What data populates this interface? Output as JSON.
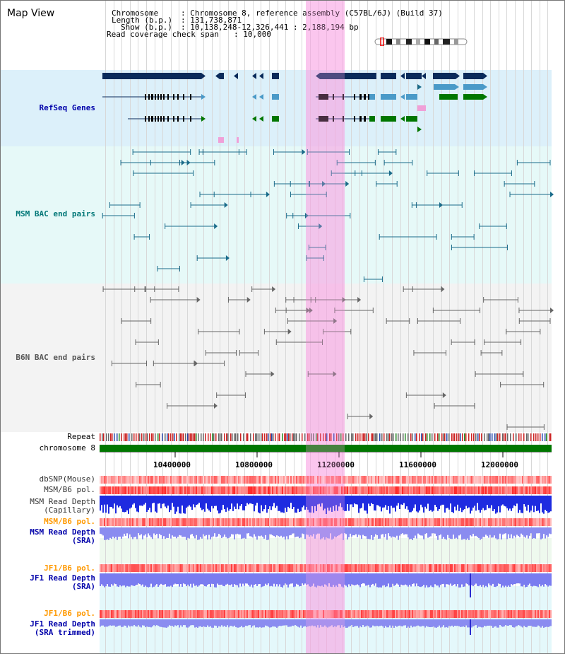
{
  "header": {
    "title": "Map View",
    "chromosome_label": "Chromosome",
    "chromosome_value": ": Chromosome 8, reference assembly (C57BL/6J) (Build 37)",
    "length_label": "Length (b.p.)",
    "length_value": ": 131,738,871",
    "show_label": "Show (b.p.)",
    "show_value": ": 10,138,248-12,326,441 : 2,188,194 bp",
    "coverage_label": "Read coverage check span",
    "coverage_value": ": 10,000"
  },
  "tracks": {
    "refseq": "RefSeq Genes",
    "msm_bac": "MSM BAC end pairs",
    "b6n_bac": "B6N BAC end pairs",
    "repeat": "Repeat",
    "chromosome": "chromosome 8",
    "dbsnp": "dbSNP(Mouse)",
    "msm_b6_pol_1": "MSM/B6 pol.",
    "msm_depth_cap_1": "MSM Read Depth",
    "msm_depth_cap_2": "(Capillary)",
    "msm_b6_pol_2": "MSM/B6 pol.",
    "msm_depth_sra_1": "MSM Read Depth",
    "msm_depth_sra_2": "(SRA)",
    "jf1_b6_pol_1": "JF1/B6 pol.",
    "jf1_depth_sra_1": "JF1 Read Depth",
    "jf1_depth_sra_2": "(SRA)",
    "jf1_b6_pol_2": "JF1/B6 pol.",
    "jf1_depth_trim_1": "JF1 Read Depth",
    "jf1_depth_trim_2": "(SRA trimmed)"
  },
  "axis": {
    "ticks": [
      "10400000",
      "10800000",
      "11200000",
      "11600000",
      "12000000"
    ]
  },
  "colors": {
    "refseq_label": "#0000aa",
    "msm_label": "#007777",
    "b6n_label": "#555555",
    "pol_orange": "#ff9900",
    "depth_blue": "#0000aa",
    "highlight": "#f5b0e6",
    "chromosome_green": "#007700"
  }
}
